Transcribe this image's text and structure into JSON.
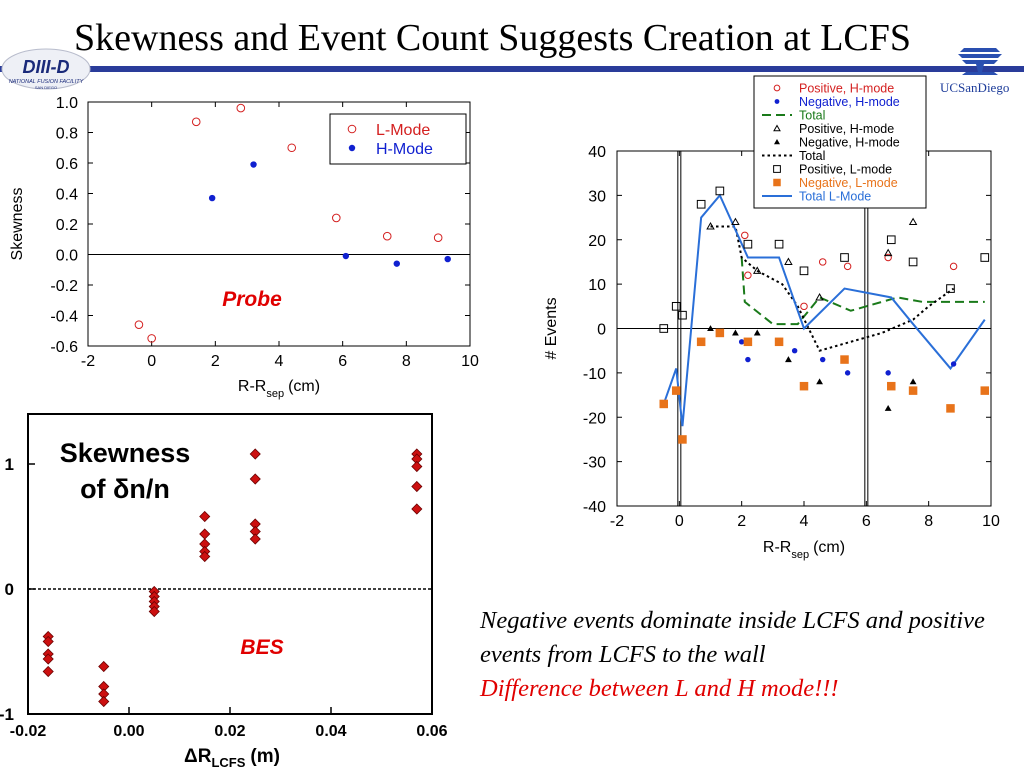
{
  "slide": {
    "title": "Skewness and Event Count Suggests Creation at LCFS",
    "logo_left_text": "DIII-D",
    "logo_left_subtext": "NATIONAL FUSION FACILITY",
    "logo_left_location": "SAN DIEGO",
    "logo_right_text": "UCSanDiego",
    "caption_main": "Negative events dominate inside LCFS and positive events from LCFS to the wall",
    "caption_alert": "Difference between L and H mode!!!",
    "colors": {
      "title_rule": "#2a3c9a",
      "alert": "#e00000"
    }
  },
  "chart_data": [
    {
      "type": "scatter",
      "title": "",
      "xlabel": "R-R",
      "xlabel_sub": "sep",
      "xlabel_unit": "(cm)",
      "ylabel": "Skewness",
      "xlim": [
        -2,
        10
      ],
      "ylim": [
        -0.6,
        1.0
      ],
      "xticks": [
        "-2",
        "0",
        "2",
        "4",
        "6",
        "8",
        "10"
      ],
      "yticks": [
        "1.0",
        "0.8",
        "0.6",
        "0.4",
        "0.2",
        "0.0",
        "-0.2",
        "-0.4",
        "-0.6"
      ],
      "annotation": "Probe",
      "legend_position": "top-right",
      "grid": false,
      "series": [
        {
          "name": "L-Mode",
          "marker": "open-circle",
          "color": "#d42020",
          "x": [
            -0.4,
            0.0,
            1.4,
            2.8,
            4.4,
            5.8,
            7.4,
            9.0
          ],
          "y": [
            -0.46,
            -0.55,
            0.87,
            0.96,
            0.7,
            0.24,
            0.12,
            0.11
          ]
        },
        {
          "name": "H-Mode",
          "marker": "dot",
          "color": "#1020d0",
          "x": [
            1.9,
            3.2,
            6.1,
            7.7,
            9.3
          ],
          "y": [
            0.37,
            0.59,
            -0.01,
            -0.06,
            -0.03
          ]
        }
      ]
    },
    {
      "type": "scatter",
      "title": "",
      "xlabel": "R-R",
      "xlabel_sub": "sep",
      "xlabel_unit": "(cm)",
      "ylabel": "# Events",
      "xlim": [
        -2,
        10
      ],
      "ylim": [
        -40,
        40
      ],
      "xticks": [
        "-2",
        "0",
        "2",
        "4",
        "6",
        "8",
        "10"
      ],
      "yticks": [
        "40",
        "30",
        "20",
        "10",
        "0",
        "-10",
        "-20",
        "-30",
        "-40"
      ],
      "vertical_lines_x": [
        0,
        6
      ],
      "legend_position": "top-right",
      "grid": false,
      "series": [
        {
          "name": "Positive, H-mode",
          "marker": "open-circle",
          "color": "#d42020",
          "x": [
            2.1,
            2.2,
            4.0,
            4.6,
            5.4,
            6.7,
            8.8
          ],
          "y": [
            21,
            12,
            5,
            15,
            14,
            16,
            14
          ]
        },
        {
          "name": "Negative, H-mode",
          "marker": "dot",
          "color": "#1020d0",
          "x": [
            2.0,
            2.2,
            3.7,
            4.6,
            5.4,
            6.7,
            8.8
          ],
          "y": [
            -3,
            -7,
            -5,
            -7,
            -10,
            -10,
            -8
          ]
        },
        {
          "name": "Total",
          "marker": "line",
          "dash": "dash",
          "color": "#1a7a1a",
          "x": [
            2.0,
            2.1,
            3.0,
            3.8,
            4.5,
            5.5,
            7.0,
            7.8,
            9.8
          ],
          "y": [
            16,
            6,
            1,
            1,
            7,
            4,
            7,
            6,
            6
          ]
        },
        {
          "name": "Positive, H-mode",
          "marker": "open-triangle",
          "color": "#000000",
          "x": [
            1.0,
            1.8,
            2.5,
            3.5,
            4.5,
            6.7,
            7.5
          ],
          "y": [
            23,
            24,
            13,
            15,
            7,
            17,
            24
          ]
        },
        {
          "name": "Negative, H-mode",
          "marker": "filled-triangle",
          "color": "#000000",
          "x": [
            1.0,
            1.8,
            2.5,
            3.5,
            4.5,
            6.7,
            7.5
          ],
          "y": [
            0,
            -1,
            -1,
            -7,
            -12,
            -18,
            -12
          ]
        },
        {
          "name": "Total",
          "marker": "line",
          "dash": "dot",
          "color": "#000000",
          "x": [
            1.0,
            1.8,
            2.0,
            2.5,
            3.3,
            3.8,
            4.5,
            5.5,
            6.5,
            7.5,
            8.0,
            8.8
          ],
          "y": [
            23,
            23,
            16,
            13,
            10,
            5,
            -5,
            -3,
            -1,
            2,
            5,
            9
          ]
        },
        {
          "name": "Positive, L-mode",
          "marker": "open-square",
          "color": "#000000",
          "x": [
            -0.5,
            -0.1,
            0.1,
            0.7,
            1.3,
            2.2,
            3.2,
            4.0,
            5.3,
            6.8,
            7.5,
            8.7,
            9.8
          ],
          "y": [
            0,
            5,
            3,
            28,
            31,
            19,
            19,
            13,
            16,
            20,
            15,
            9,
            16
          ]
        },
        {
          "name": "Negative, L-mode",
          "marker": "filled-square",
          "color": "#e8731a",
          "x": [
            -0.5,
            -0.1,
            0.1,
            0.7,
            1.3,
            2.2,
            3.2,
            4.0,
            5.3,
            6.8,
            7.5,
            8.7,
            9.8
          ],
          "y": [
            -17,
            -14,
            -25,
            -3,
            -1,
            -3,
            -3,
            -13,
            -7,
            -13,
            -14,
            -18,
            -14
          ]
        },
        {
          "name": "Total L-Mode",
          "marker": "line",
          "dash": "solid",
          "color": "#2a6fd8",
          "x": [
            -0.5,
            -0.1,
            0.1,
            0.7,
            1.3,
            2.2,
            3.2,
            4.0,
            5.3,
            6.8,
            7.5,
            8.7,
            9.8
          ],
          "y": [
            -17,
            -9,
            -22,
            25,
            30,
            16,
            16,
            0,
            9,
            7,
            1,
            -9,
            2
          ]
        }
      ]
    },
    {
      "type": "scatter",
      "title": "Skewness of δn/n",
      "title_line1": "Skewness",
      "title_line2": "of δn/n",
      "xlabel": "ΔR",
      "xlabel_sub": "LCFS",
      "xlabel_unit": "(m)",
      "ylabel": "",
      "xlim": [
        -0.02,
        0.06
      ],
      "ylim": [
        -1,
        1.4
      ],
      "xticks": [
        "-0.02",
        "0.00",
        "0.02",
        "0.04",
        "0.06"
      ],
      "yticks": [
        "1",
        "0",
        "-1"
      ],
      "annotation": "BES",
      "grid": false,
      "series": [
        {
          "name": "",
          "marker": "filled-diamond",
          "color": "#cc1010",
          "x": [
            -0.016,
            -0.016,
            -0.016,
            -0.016,
            -0.016,
            -0.005,
            -0.005,
            -0.005,
            -0.005,
            0.005,
            0.005,
            0.005,
            0.005,
            0.005,
            0.015,
            0.015,
            0.015,
            0.015,
            0.015,
            0.025,
            0.025,
            0.025,
            0.025,
            0.025,
            0.057,
            0.057,
            0.057,
            0.057,
            0.057
          ],
          "y": [
            -0.38,
            -0.42,
            -0.52,
            -0.56,
            -0.66,
            -0.62,
            -0.78,
            -0.84,
            -0.9,
            -0.02,
            -0.06,
            -0.1,
            -0.14,
            -0.18,
            0.58,
            0.44,
            0.36,
            0.3,
            0.26,
            1.08,
            0.88,
            0.52,
            0.46,
            0.4,
            1.08,
            1.04,
            0.98,
            0.82,
            0.64
          ]
        }
      ]
    }
  ]
}
